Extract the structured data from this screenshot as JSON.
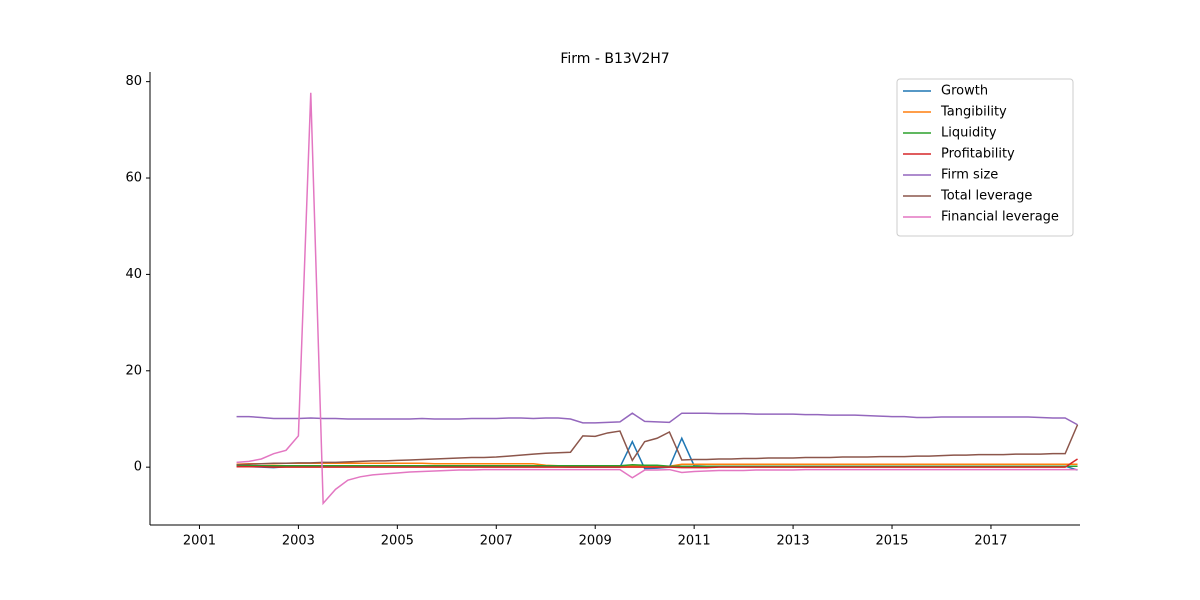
{
  "chart_data": {
    "type": "line",
    "title": "Firm - B13V2H7",
    "x": [
      2001.75,
      2002,
      2002.25,
      2002.5,
      2002.75,
      2003,
      2003.25,
      2003.5,
      2003.75,
      2004,
      2004.25,
      2004.5,
      2004.75,
      2005,
      2005.25,
      2005.5,
      2005.75,
      2006,
      2006.25,
      2006.5,
      2006.75,
      2007,
      2007.25,
      2007.5,
      2007.75,
      2008,
      2008.25,
      2008.5,
      2008.75,
      2009,
      2009.25,
      2009.5,
      2009.75,
      2010,
      2010.25,
      2010.5,
      2010.75,
      2011,
      2011.25,
      2011.5,
      2011.75,
      2012,
      2012.25,
      2012.5,
      2012.75,
      2013,
      2013.25,
      2013.5,
      2013.75,
      2014,
      2014.25,
      2014.5,
      2014.75,
      2015,
      2015.25,
      2015.5,
      2015.75,
      2016,
      2016.25,
      2016.5,
      2016.75,
      2017,
      2017.25,
      2017.5,
      2017.75,
      2018,
      2018.25,
      2018.5,
      2018.75
    ],
    "xlim": [
      2000,
      2018.8
    ],
    "xticks": [
      2001,
      2003,
      2005,
      2007,
      2009,
      2011,
      2013,
      2015,
      2017
    ],
    "ylim": [
      -12,
      82
    ],
    "yticks": [
      0,
      20,
      40,
      60,
      80
    ],
    "legend": "upper right",
    "series": [
      {
        "name": "Growth",
        "color": "#1f77b4",
        "values": [
          0.3,
          0.1,
          0,
          -0.1,
          0.1,
          0.2,
          0.2,
          0.3,
          0.2,
          0.2,
          0.2,
          0.2,
          0.2,
          0.2,
          0.2,
          0.2,
          0.2,
          0.2,
          0.2,
          0.2,
          0.2,
          0.2,
          0.2,
          0.2,
          0.2,
          0.1,
          0.1,
          0,
          0,
          0,
          0,
          0,
          5.3,
          -0.3,
          -0.2,
          0,
          6,
          0.3,
          0.2,
          0.2,
          0.2,
          0.2,
          0.2,
          0.2,
          0.2,
          0.2,
          0.2,
          0.2,
          0.2,
          0.2,
          0.2,
          0.2,
          0.2,
          0.2,
          0.2,
          0.2,
          0.2,
          0.2,
          0.2,
          0.2,
          0.2,
          0.2,
          0.2,
          0.2,
          0.2,
          0.2,
          0.2,
          0.2,
          -0.6
        ]
      },
      {
        "name": "Tangibility",
        "color": "#ff7f0e",
        "values": [
          0.6,
          0.7,
          0.7,
          0.7,
          0.8,
          0.8,
          0.8,
          0.8,
          0.8,
          0.8,
          0.8,
          0.8,
          0.8,
          0.8,
          0.8,
          0.8,
          0.7,
          0.7,
          0.7,
          0.7,
          0.7,
          0.7,
          0.7,
          0.7,
          0.7,
          0.4,
          0.3,
          0.3,
          0.2,
          0.2,
          0.2,
          0.2,
          0.3,
          0.2,
          0.2,
          0.2,
          0.6,
          0.6,
          0.6,
          0.6,
          0.6,
          0.6,
          0.6,
          0.6,
          0.6,
          0.6,
          0.6,
          0.6,
          0.6,
          0.6,
          0.6,
          0.6,
          0.6,
          0.6,
          0.6,
          0.6,
          0.6,
          0.6,
          0.6,
          0.6,
          0.6,
          0.6,
          0.6,
          0.6,
          0.6,
          0.6,
          0.6,
          0.6,
          0.6
        ]
      },
      {
        "name": "Liquidity",
        "color": "#2ca02c",
        "values": [
          0.3,
          0.3,
          0.3,
          0.3,
          0.3,
          0.3,
          0.3,
          0.3,
          0.3,
          0.3,
          0.3,
          0.3,
          0.3,
          0.3,
          0.3,
          0.3,
          0.3,
          0.3,
          0.3,
          0.3,
          0.3,
          0.3,
          0.3,
          0.3,
          0.3,
          0.3,
          0.3,
          0.3,
          0.3,
          0.3,
          0.3,
          0.3,
          0.5,
          0.4,
          0.4,
          0.2,
          0.2,
          0.2,
          0.2,
          0.2,
          0.2,
          0.2,
          0.2,
          0.2,
          0.2,
          0.2,
          0.2,
          0.2,
          0.2,
          0.2,
          0.2,
          0.2,
          0.2,
          0.2,
          0.2,
          0.2,
          0.2,
          0.2,
          0.2,
          0.2,
          0.2,
          0.2,
          0.2,
          0.2,
          0.2,
          0.2,
          0.2,
          0.2,
          0.2
        ]
      },
      {
        "name": "Profitability",
        "color": "#d62728",
        "values": [
          0.1,
          0.1,
          0.1,
          0,
          0,
          0,
          0,
          0,
          0,
          0,
          0,
          0,
          0,
          0,
          0,
          0,
          0,
          0,
          0,
          0,
          0,
          0,
          0,
          0,
          0,
          0,
          0,
          0,
          0,
          0,
          0,
          0,
          0,
          0,
          0,
          0,
          -0.1,
          -0.1,
          -0.1,
          0,
          0,
          0,
          0,
          0,
          0,
          0,
          0,
          0,
          0,
          0,
          0,
          0,
          0,
          0,
          0,
          0,
          0,
          0,
          0,
          0,
          0,
          0,
          0,
          0,
          0,
          0,
          0,
          0,
          1.7
        ]
      },
      {
        "name": "Firm size",
        "color": "#9467bd",
        "values": [
          10.5,
          10.5,
          10.3,
          10.1,
          10.1,
          10.1,
          10.2,
          10.1,
          10.1,
          10.0,
          10.0,
          10.0,
          10.0,
          10.0,
          10.0,
          10.1,
          10.0,
          10.0,
          10.0,
          10.1,
          10.1,
          10.1,
          10.2,
          10.2,
          10.1,
          10.2,
          10.2,
          10.0,
          9.2,
          9.2,
          9.3,
          9.4,
          11.2,
          9.5,
          9.4,
          9.3,
          11.2,
          11.2,
          11.2,
          11.1,
          11.1,
          11.1,
          11.0,
          11.0,
          11.0,
          11.0,
          10.9,
          10.9,
          10.8,
          10.8,
          10.8,
          10.7,
          10.6,
          10.5,
          10.5,
          10.3,
          10.3,
          10.4,
          10.4,
          10.4,
          10.4,
          10.4,
          10.4,
          10.4,
          10.4,
          10.3,
          10.2,
          10.2,
          8.8
        ]
      },
      {
        "name": "Total leverage",
        "color": "#8c564b",
        "values": [
          0.5,
          0.6,
          0.7,
          0.8,
          0.8,
          0.9,
          0.9,
          1.0,
          1.0,
          1.1,
          1.2,
          1.3,
          1.3,
          1.4,
          1.5,
          1.6,
          1.7,
          1.8,
          1.9,
          2.0,
          2.0,
          2.1,
          2.3,
          2.5,
          2.7,
          2.9,
          3.0,
          3.1,
          6.5,
          6.4,
          7.1,
          7.5,
          1.4,
          5.3,
          6.0,
          7.3,
          1.5,
          1.6,
          1.6,
          1.7,
          1.7,
          1.8,
          1.8,
          1.9,
          1.9,
          1.9,
          2.0,
          2.0,
          2.0,
          2.1,
          2.1,
          2.1,
          2.2,
          2.2,
          2.2,
          2.3,
          2.3,
          2.4,
          2.5,
          2.5,
          2.6,
          2.6,
          2.6,
          2.7,
          2.7,
          2.7,
          2.8,
          2.8,
          8.8
        ]
      },
      {
        "name": "Financial leverage",
        "color": "#e377c2",
        "values": [
          1.0,
          1.2,
          1.7,
          2.8,
          3.5,
          6.5,
          77.7,
          -7.5,
          -4.6,
          -2.7,
          -2.0,
          -1.6,
          -1.4,
          -1.2,
          -1.0,
          -0.9,
          -0.8,
          -0.7,
          -0.6,
          -0.6,
          -0.5,
          -0.5,
          -0.5,
          -0.5,
          -0.5,
          -0.5,
          -0.5,
          -0.5,
          -0.5,
          -0.5,
          -0.5,
          -0.5,
          -2.2,
          -0.6,
          -0.6,
          -0.5,
          -1.1,
          -0.9,
          -0.8,
          -0.7,
          -0.7,
          -0.7,
          -0.6,
          -0.6,
          -0.6,
          -0.6,
          -0.5,
          -0.5,
          -0.5,
          -0.5,
          -0.5,
          -0.5,
          -0.5,
          -0.5,
          -0.5,
          -0.5,
          -0.5,
          -0.5,
          -0.5,
          -0.5,
          -0.5,
          -0.5,
          -0.5,
          -0.5,
          -0.5,
          -0.5,
          -0.5,
          -0.5,
          -0.5
        ]
      }
    ]
  }
}
